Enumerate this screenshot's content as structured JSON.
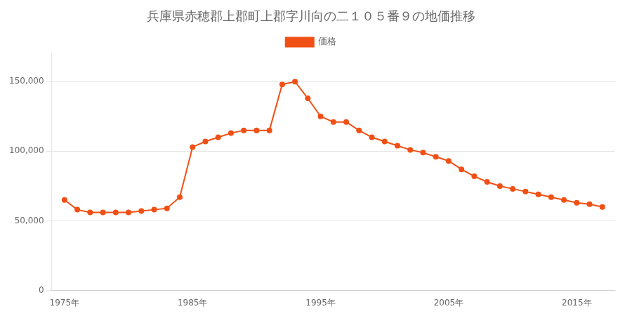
{
  "chart_data": {
    "type": "line",
    "title": "兵庫県赤穂郡上郡町上郡字川向の二１０５番９の地価推移",
    "x": [
      1975,
      1976,
      1977,
      1978,
      1979,
      1980,
      1981,
      1982,
      1983,
      1984,
      1985,
      1986,
      1987,
      1988,
      1989,
      1990,
      1991,
      1992,
      1993,
      1994,
      1995,
      1996,
      1997,
      1998,
      1999,
      2000,
      2001,
      2002,
      2003,
      2004,
      2005,
      2006,
      2007,
      2008,
      2009,
      2010,
      2011,
      2012,
      2013,
      2014,
      2015,
      2016,
      2017
    ],
    "series": [
      {
        "name": "価格",
        "color": "#f05014",
        "marker": "circle",
        "values": [
          65000,
          58000,
          56000,
          56000,
          56000,
          56000,
          57000,
          58000,
          59000,
          67000,
          103000,
          107000,
          110000,
          113000,
          115000,
          115000,
          115000,
          148000,
          150000,
          138000,
          125000,
          121000,
          121000,
          115000,
          110000,
          107000,
          104000,
          101000,
          99000,
          96000,
          93000,
          87000,
          82000,
          78000,
          75000,
          73000,
          71000,
          69000,
          67000,
          65000,
          63000,
          62000,
          60000
        ]
      }
    ],
    "xlim": [
      1974,
      2018
    ],
    "xticks": [
      {
        "value": 1975,
        "label": "1975年"
      },
      {
        "value": 1985,
        "label": "1985年"
      },
      {
        "value": 1995,
        "label": "1995年"
      },
      {
        "value": 2005,
        "label": "2005年"
      },
      {
        "value": 2015,
        "label": "2015年"
      }
    ],
    "ylim": [
      0,
      170000
    ],
    "yticks": [
      0,
      {
        "value": 50000,
        "label": "50,000"
      },
      {
        "value": 100000,
        "label": "100,000"
      },
      {
        "value": 150000,
        "label": "150,000"
      }
    ],
    "grid": true,
    "legend": "top"
  }
}
